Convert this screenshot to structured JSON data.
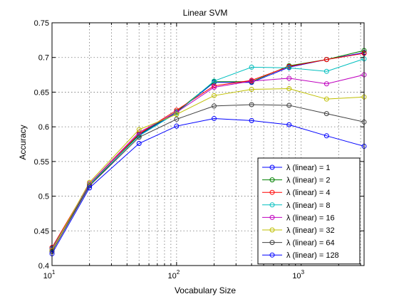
{
  "chart_data": {
    "type": "line",
    "title": "Linear SVM",
    "xlabel": "Vocabulary Size",
    "ylabel": "Accuracy",
    "xscale": "log",
    "xlim": [
      10,
      3200
    ],
    "ylim": [
      0.4,
      0.75
    ],
    "grid": true,
    "legend_position": "bottom-right",
    "x_ticks": [
      {
        "value": 10,
        "base": "10",
        "exp": "1"
      },
      {
        "value": 100,
        "base": "10",
        "exp": "2"
      },
      {
        "value": 1000,
        "base": "10",
        "exp": "3"
      }
    ],
    "y_ticks": [
      "0.4",
      "0.45",
      "0.5",
      "0.55",
      "0.6",
      "0.65",
      "0.7",
      "0.75"
    ],
    "x": [
      10,
      20,
      50,
      100,
      200,
      400,
      800,
      1600,
      3200
    ],
    "series": [
      {
        "name": "λ (linear) = 1",
        "color": "#0000ff",
        "values": [
          0.425,
          0.515,
          0.588,
          0.621,
          0.664,
          0.664,
          0.686,
          0.697,
          0.707
        ]
      },
      {
        "name": "λ (linear) = 2",
        "color": "#008000",
        "values": [
          0.424,
          0.515,
          0.589,
          0.622,
          0.665,
          0.665,
          0.688,
          0.697,
          0.71
        ]
      },
      {
        "name": "λ (linear) = 4",
        "color": "#ff0000",
        "values": [
          0.426,
          0.518,
          0.59,
          0.624,
          0.659,
          0.667,
          0.687,
          0.697,
          0.706
        ]
      },
      {
        "name": "λ (linear) = 8",
        "color": "#00bfbf",
        "values": [
          0.424,
          0.517,
          0.587,
          0.62,
          0.666,
          0.686,
          0.685,
          0.68,
          0.698
        ]
      },
      {
        "name": "λ (linear) = 16",
        "color": "#bf00bf",
        "values": [
          0.423,
          0.518,
          0.592,
          0.621,
          0.657,
          0.666,
          0.67,
          0.662,
          0.675
        ]
      },
      {
        "name": "λ (linear) = 32",
        "color": "#bfbf00",
        "values": [
          0.422,
          0.52,
          0.596,
          0.618,
          0.645,
          0.654,
          0.655,
          0.64,
          0.643
        ]
      },
      {
        "name": "λ (linear) = 64",
        "color": "#404040",
        "values": [
          0.42,
          0.515,
          0.585,
          0.611,
          0.63,
          0.632,
          0.631,
          0.619,
          0.607
        ]
      },
      {
        "name": "λ (linear) = 128",
        "color": "#0000ff",
        "values": [
          0.417,
          0.512,
          0.576,
          0.601,
          0.612,
          0.609,
          0.603,
          0.587,
          0.572
        ]
      }
    ]
  }
}
